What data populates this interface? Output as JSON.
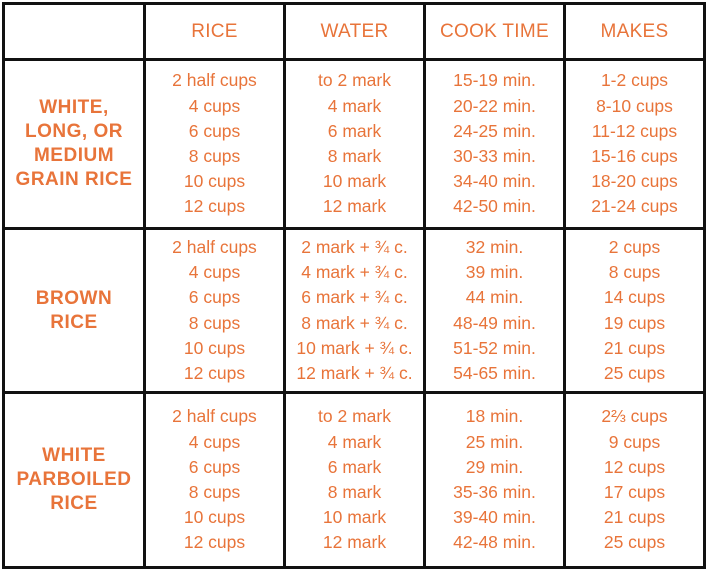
{
  "headers": [
    "",
    "RICE",
    "WATER",
    "COOK TIME",
    "MAKES"
  ],
  "groups": [
    {
      "label_lines": [
        "WHITE,",
        "LONG, OR",
        "MEDIUM",
        "GRAIN RICE"
      ],
      "rice": [
        "2 half cups",
        "4 cups",
        "6 cups",
        "8 cups",
        "10 cups",
        "12 cups"
      ],
      "water": [
        "to 2 mark",
        "4 mark",
        "6 mark",
        "8 mark",
        "10 mark",
        "12 mark"
      ],
      "cook_time": [
        "15-19 min.",
        "20-22 min.",
        "24-25 min.",
        "30-33 min.",
        "34-40 min.",
        "42-50 min."
      ],
      "makes": [
        "1-2 cups",
        "8-10 cups",
        "11-12 cups",
        "15-16 cups",
        "18-20 cups",
        "21-24 cups"
      ]
    },
    {
      "label_lines": [
        "BROWN",
        "RICE"
      ],
      "rice": [
        "2 half cups",
        "4 cups",
        "6 cups",
        "8 cups",
        "10 cups",
        "12 cups"
      ],
      "water": [
        "2 mark + ¾ c.",
        "4 mark + ¾ c.",
        "6 mark + ¾ c.",
        "8 mark + ¾ c.",
        "10 mark + ¾ c.",
        "12 mark + ¾ c."
      ],
      "cook_time": [
        "32 min.",
        "39 min.",
        "44 min.",
        "48-49 min.",
        "51-52 min.",
        "54-65 min."
      ],
      "makes": [
        "2 cups",
        "8 cups",
        "14 cups",
        "19 cups",
        "21 cups",
        "25 cups"
      ]
    },
    {
      "label_lines": [
        "WHITE",
        "PARBOILED",
        "RICE"
      ],
      "rice": [
        "2 half cups",
        "4 cups",
        "6 cups",
        "8 cups",
        "10 cups",
        "12 cups"
      ],
      "water": [
        "to 2 mark",
        "4 mark",
        "6 mark",
        "8 mark",
        "10 mark",
        "12 mark"
      ],
      "cook_time": [
        "18 min.",
        "25 min.",
        "29 min.",
        "35-36 min.",
        "39-40 min.",
        "42-48 min."
      ],
      "makes": [
        "2⅔ cups",
        "9 cups",
        "12 cups",
        "17 cups",
        "21 cups",
        "25 cups"
      ]
    }
  ]
}
